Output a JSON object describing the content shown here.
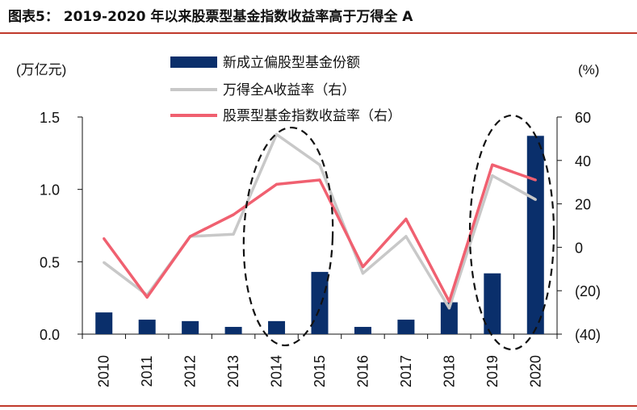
{
  "figure": {
    "title": "图表5：   2019-2020 年以来股票型基金指数收益率高于万得全 A"
  },
  "chart_data": {
    "type": "bar",
    "categories": [
      "2010",
      "2011",
      "2012",
      "2013",
      "2014",
      "2015",
      "2016",
      "2017",
      "2018",
      "2019",
      "2020"
    ],
    "series": [
      {
        "name": "新成立偏股型基金份额",
        "axis": "left",
        "kind": "bar",
        "color": "#0a2f6b",
        "values": [
          0.15,
          0.1,
          0.09,
          0.05,
          0.09,
          0.43,
          0.05,
          0.1,
          0.22,
          0.42,
          1.37
        ]
      },
      {
        "name": "万得全A收益率（右）",
        "axis": "right",
        "kind": "line",
        "color": "#c8c8c8",
        "values": [
          -7,
          -22,
          5,
          6,
          52,
          38,
          -12,
          5,
          -28,
          33,
          22
        ]
      },
      {
        "name": "股票型基金指数收益率（右）",
        "axis": "right",
        "kind": "line",
        "color": "#f06070",
        "values": [
          4,
          -23,
          5,
          15,
          29,
          31,
          -9,
          13,
          -25,
          38,
          31
        ]
      }
    ],
    "left_axis": {
      "label": "(万亿元)",
      "ylim": [
        0,
        1.5
      ],
      "ticks": [
        "0.0",
        "0.5",
        "1.0",
        "1.5"
      ]
    },
    "right_axis": {
      "label": "(%)",
      "ylim": [
        -40,
        60
      ],
      "ticks": [
        "(40)",
        "(20)",
        "0",
        "20",
        "40",
        "60"
      ]
    },
    "highlights": [
      "2014-2015",
      "2019-2020"
    ],
    "legend_position": "top-center"
  }
}
